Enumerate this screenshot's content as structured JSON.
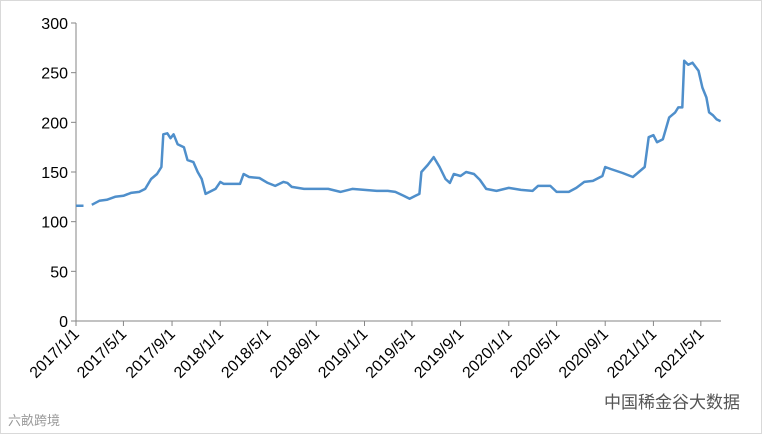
{
  "chart_data": {
    "type": "line",
    "x": [
      "2017/1/1",
      "2017/1/20",
      "2017/2/1",
      "2017/2/10",
      "2017/3/1",
      "2017/3/20",
      "2017/4/10",
      "2017/5/1",
      "2017/5/20",
      "2017/6/10",
      "2017/6/25",
      "2017/7/10",
      "2017/7/25",
      "2017/8/5",
      "2017/8/10",
      "2017/8/20",
      "2017/8/28",
      "2017/9/5",
      "2017/9/15",
      "2017/10/1",
      "2017/10/10",
      "2017/10/25",
      "2017/11/5",
      "2017/11/15",
      "2017/11/25",
      "2017/12/5",
      "2017/12/20",
      "2018/1/1",
      "2018/1/10",
      "2018/2/1",
      "2018/2/20",
      "2018/3/1",
      "2018/3/15",
      "2018/4/10",
      "2018/5/1",
      "2018/5/20",
      "2018/6/10",
      "2018/6/20",
      "2018/7/1",
      "2018/8/1",
      "2018/9/1",
      "2018/10/1",
      "2018/11/1",
      "2018/12/1",
      "2019/1/1",
      "2019/2/1",
      "2019/3/1",
      "2019/3/20",
      "2019/4/10",
      "2019/4/25",
      "2019/5/10",
      "2019/5/20",
      "2019/5/25",
      "2019/6/10",
      "2019/6/25",
      "2019/7/10",
      "2019/7/25",
      "2019/8/5",
      "2019/8/15",
      "2019/9/1",
      "2019/9/15",
      "2019/10/5",
      "2019/10/20",
      "2019/11/5",
      "2019/12/1",
      "2020/1/1",
      "2020/2/1",
      "2020/3/1",
      "2020/3/15",
      "2020/4/15",
      "2020/5/1",
      "2020/6/1",
      "2020/6/20",
      "2020/7/10",
      "2020/8/1",
      "2020/8/25",
      "2020/9/1",
      "2020/9/15",
      "2020/10/15",
      "2020/11/10",
      "2020/11/25",
      "2020/12/10",
      "2020/12/20",
      "2021/1/1",
      "2021/1/10",
      "2021/1/25",
      "2021/2/10",
      "2021/2/25",
      "2021/3/5",
      "2021/3/15",
      "2021/3/20",
      "2021/3/30",
      "2021/4/10",
      "2021/4/25",
      "2021/5/5",
      "2021/5/15",
      "2021/5/22",
      "2021/6/1",
      "2021/6/10",
      "2021/6/20"
    ],
    "series": [
      {
        "color": "#4f8fcb",
        "values": [
          116,
          116,
          null,
          117,
          121,
          122,
          125,
          126,
          129,
          130,
          133,
          143,
          148,
          155,
          188,
          189,
          184,
          188,
          178,
          175,
          162,
          160,
          150,
          143,
          128,
          130,
          133,
          140,
          138,
          138,
          138,
          148,
          145,
          144,
          139,
          136,
          140,
          139,
          135,
          133,
          133,
          133,
          130,
          133,
          132,
          131,
          131,
          130,
          126,
          123,
          126,
          128,
          150,
          157,
          165,
          155,
          143,
          139,
          148,
          146,
          150,
          148,
          142,
          133,
          131,
          134,
          132,
          131,
          136,
          136,
          130,
          130,
          134,
          140,
          141,
          146,
          155,
          153,
          149,
          145,
          150,
          155,
          185,
          187,
          180,
          183,
          205,
          210,
          215,
          215,
          262,
          258,
          260,
          252,
          235,
          225,
          210,
          207,
          203,
          201
        ]
      }
    ],
    "xlim": [
      "2017/1/1",
      "2021/6/21"
    ],
    "xticks": [
      "2017/1/1",
      "2017/5/1",
      "2017/9/1",
      "2018/1/1",
      "2018/5/1",
      "2018/9/1",
      "2019/1/1",
      "2019/5/1",
      "2019/9/1",
      "2020/1/1",
      "2020/5/1",
      "2020/9/1",
      "2021/1/1",
      "2021/5/1"
    ],
    "ylim": [
      0,
      300
    ],
    "yticks": [
      0,
      50,
      100,
      150,
      200,
      250,
      300
    ],
    "grid": false
  },
  "watermarks": [
    "六畝跨境",
    "中国稀金谷大数据"
  ]
}
